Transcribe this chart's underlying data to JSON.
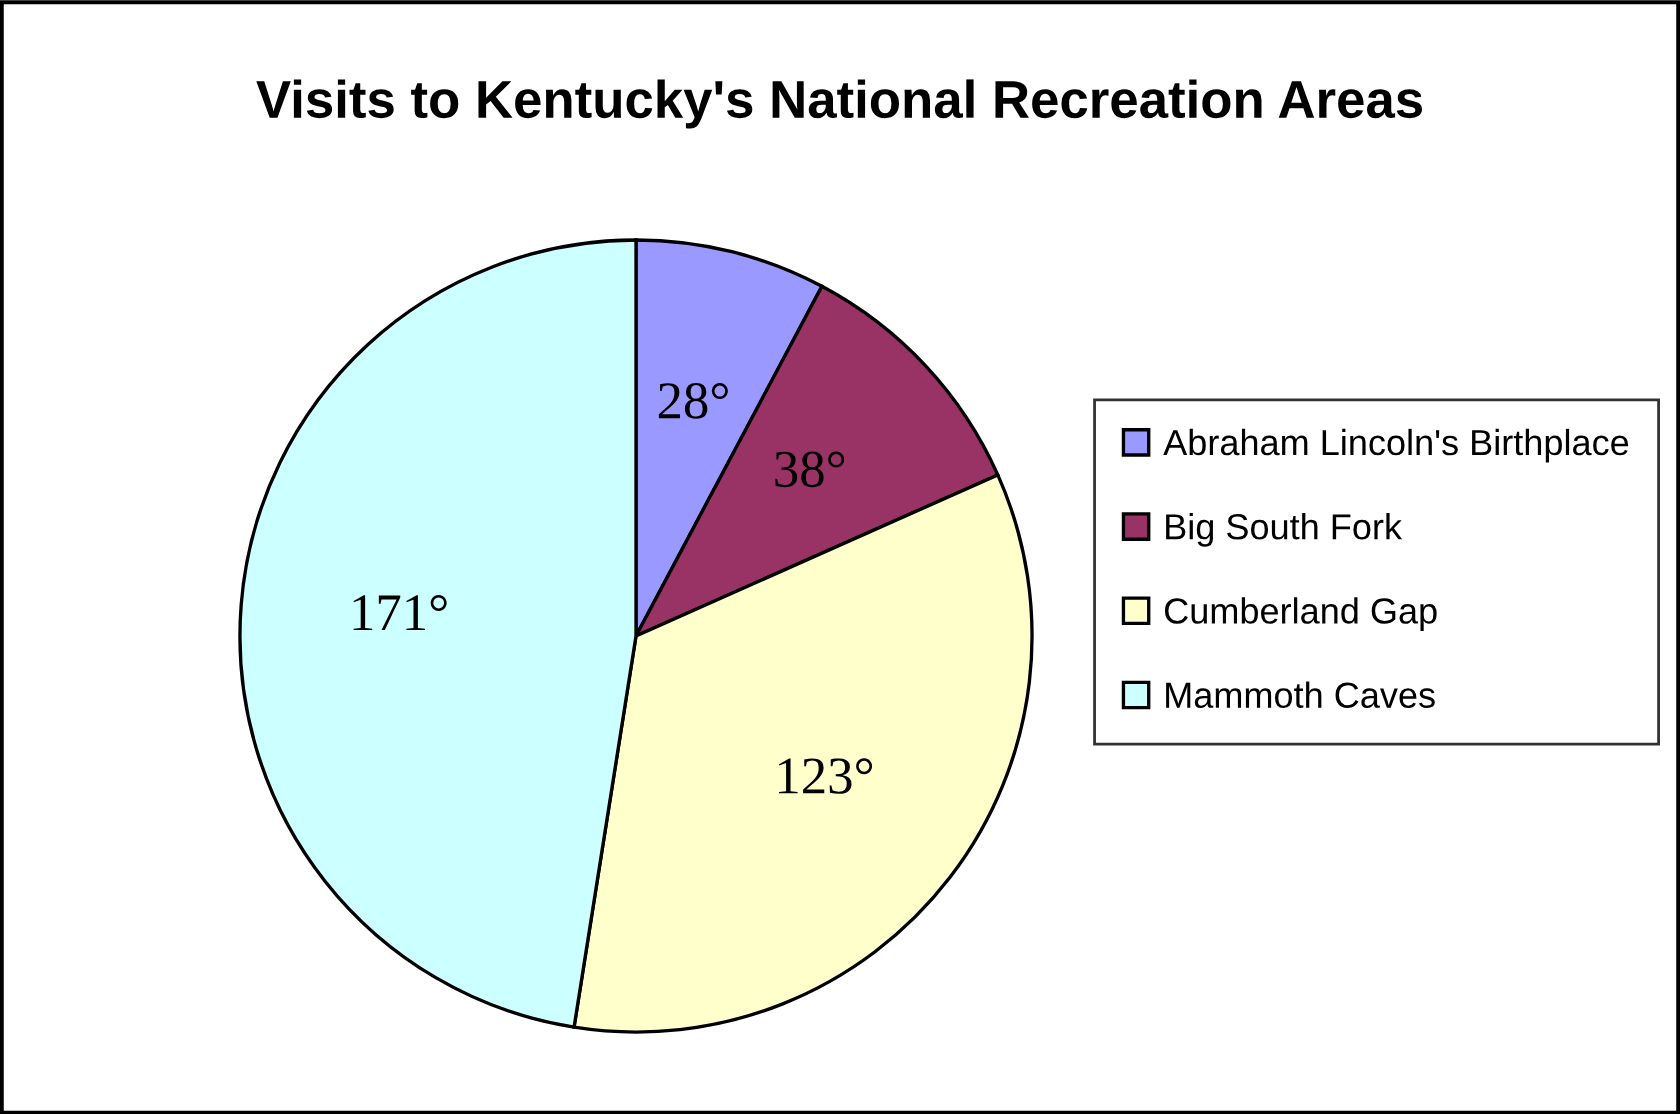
{
  "chart_data": {
    "type": "pie",
    "title": "Visits to Kentucky's National Recreation Areas",
    "categories": [
      "Abraham Lincoln's Birthplace",
      "Big South Fork",
      "Cumberland Gap",
      "Mammoth Caves"
    ],
    "values": [
      28,
      38,
      123,
      171
    ],
    "value_labels": [
      "28°",
      "38°",
      "123°",
      "171°"
    ],
    "colors": [
      "#9999ff",
      "#993366",
      "#ffffcc",
      "#ccffff"
    ],
    "legend": "right"
  }
}
